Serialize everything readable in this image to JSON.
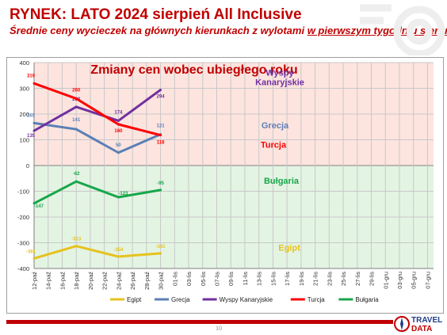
{
  "header": {
    "title": "RYNEK: LATO 2024 sierpień All Inclusive",
    "subtitle_prefix": "Średnie ceny wycieczek na głównych kierunkach z wylotami ",
    "subtitle_underlined": "w pierwszym tygodniu sierpnia"
  },
  "footer": {
    "page_number": "10"
  },
  "logo": {
    "line1": "TRAVEL",
    "line2": "DATA",
    "icon": "compass-logo-icon"
  },
  "colors": {
    "Egipt": "#e6c21d",
    "Grecja": "#5b7fb5",
    "Wyspy Kanaryjskie": "#7030a0",
    "Turcja": "#ff0000",
    "Bułgaria": "#18a64a",
    "positive_zone": "#fde4df",
    "negative_zone": "#e3f4e3",
    "title_red": "#c00000"
  },
  "chart_data": {
    "type": "line",
    "title": "Zmiany cen wobec ubiegłego roku",
    "xlabel": "",
    "ylabel": "",
    "ylim": [
      -400,
      400
    ],
    "yticks": [
      -400,
      -300,
      -200,
      -100,
      0,
      100,
      200,
      300,
      400
    ],
    "grid": true,
    "legend_position": "bottom",
    "categories": [
      "12-paź",
      "14-paź",
      "16-paź",
      "18-paź",
      "20-paź",
      "22-paź",
      "24-paź",
      "26-paź",
      "28-paź",
      "30-paź",
      "01-lis",
      "03-lis",
      "05-lis",
      "07-lis",
      "09-lis",
      "11-lis",
      "13-lis",
      "15-lis",
      "17-lis",
      "19-lis",
      "21-lis",
      "23-lis",
      "25-lis",
      "27-lis",
      "29-lis",
      "01-gru",
      "03-gru",
      "05-gru",
      "07-gru"
    ],
    "series": [
      {
        "name": "Egipt",
        "x": [
          "12-paź",
          "18-paź",
          "24-paź",
          "30-paź"
        ],
        "values": [
          -361,
          -313,
          -354,
          -341
        ],
        "labels": [
          "-361",
          "-313",
          "-354",
          "-341"
        ],
        "area_label": "Egipt"
      },
      {
        "name": "Grecja",
        "x": [
          "12-paź",
          "18-paź",
          "24-paź",
          "30-paź"
        ],
        "values": [
          165,
          141,
          50,
          121
        ],
        "labels": [
          "165",
          "141",
          "50",
          "121"
        ],
        "area_label": "Grecja"
      },
      {
        "name": "Wyspy Kanaryjskie",
        "x": [
          "12-paź",
          "18-paź",
          "24-paź",
          "30-paź"
        ],
        "values": [
          135,
          228,
          174,
          294
        ],
        "labels": [
          "135",
          "228",
          "174",
          "294"
        ],
        "area_label": "Wyspy Kanaryjskie"
      },
      {
        "name": "Turcja",
        "x": [
          "12-paź",
          "18-paź",
          "24-paź",
          "30-paź"
        ],
        "values": [
          319,
          260,
          160,
          118
        ],
        "labels": [
          "319",
          "260",
          "160",
          "118"
        ],
        "area_label": "Turcja"
      },
      {
        "name": "Bułgaria",
        "x": [
          "12-paź",
          "18-paź",
          "24-paź",
          "30-paź"
        ],
        "values": [
          -147,
          -62,
          -123,
          -95
        ],
        "labels": [
          "-147",
          "-62",
          "-123",
          "-95"
        ],
        "area_label": "Bułgaria"
      }
    ]
  }
}
